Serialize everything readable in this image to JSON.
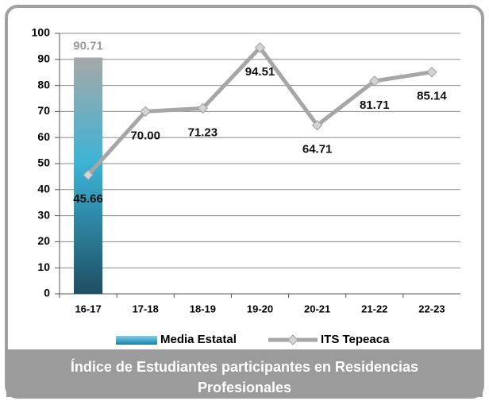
{
  "chart_data": {
    "type": "combo",
    "title": "Índice de Estudiantes participantes en Residencias Profesionales",
    "categories": [
      "16-17",
      "17-18",
      "18-19",
      "19-20",
      "20-21",
      "21-22",
      "22-23"
    ],
    "series": [
      {
        "name": "Media Estatal",
        "type": "bar",
        "color": "#3bb3d6",
        "values": [
          90.71,
          null,
          null,
          null,
          null,
          null,
          null
        ]
      },
      {
        "name": "ITS Tepeaca",
        "type": "line",
        "color": "#a6a6a6",
        "values": [
          45.66,
          70.0,
          71.23,
          94.51,
          64.71,
          81.71,
          85.14
        ],
        "value_labels": [
          "45.66",
          "70.00",
          "71.23",
          "94.51",
          "64.71",
          "81.71",
          "85.14"
        ]
      }
    ],
    "ylim": [
      0,
      100
    ],
    "yticks": [
      0,
      10,
      20,
      30,
      40,
      50,
      60,
      70,
      80,
      90,
      100
    ],
    "grid": true,
    "legend": "bottom"
  }
}
